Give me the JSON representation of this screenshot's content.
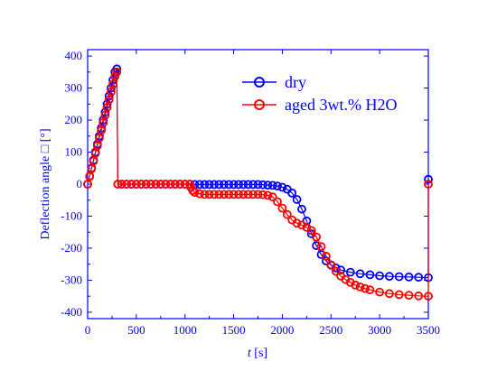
{
  "chart_data": {
    "type": "scatter",
    "xlabel_italic": "t",
    "xlabel_unit": " [s]",
    "ylabel": "Deflection angle □ [°]",
    "xlim": [
      0,
      3500
    ],
    "ylim": [
      -420,
      420
    ],
    "x_ticks": [
      0,
      500,
      1000,
      1500,
      2000,
      2500,
      3000,
      3500
    ],
    "y_ticks": [
      -400,
      -300,
      -200,
      -100,
      0,
      100,
      200,
      300,
      400
    ],
    "grid": false,
    "legend_position": "top-right",
    "axis_color": "#0000ff",
    "series": [
      {
        "name": "dry",
        "color": "#0000ff",
        "points": [
          [
            0,
            0
          ],
          [
            20,
            25
          ],
          [
            40,
            50
          ],
          [
            60,
            75
          ],
          [
            80,
            100
          ],
          [
            100,
            125
          ],
          [
            120,
            150
          ],
          [
            140,
            175
          ],
          [
            160,
            200
          ],
          [
            180,
            225
          ],
          [
            200,
            250
          ],
          [
            220,
            275
          ],
          [
            240,
            300
          ],
          [
            260,
            325
          ],
          [
            280,
            350
          ],
          [
            300,
            360
          ],
          [
            310,
            0
          ],
          [
            350,
            0
          ],
          [
            400,
            0
          ],
          [
            450,
            0
          ],
          [
            500,
            0
          ],
          [
            550,
            0
          ],
          [
            600,
            0
          ],
          [
            650,
            0
          ],
          [
            700,
            0
          ],
          [
            750,
            0
          ],
          [
            800,
            0
          ],
          [
            850,
            0
          ],
          [
            900,
            0
          ],
          [
            950,
            0
          ],
          [
            1000,
            0
          ],
          [
            1050,
            0
          ],
          [
            1100,
            -1
          ],
          [
            1150,
            -1
          ],
          [
            1200,
            -1
          ],
          [
            1250,
            -1
          ],
          [
            1300,
            -1
          ],
          [
            1350,
            -1
          ],
          [
            1400,
            -1
          ],
          [
            1450,
            -1
          ],
          [
            1500,
            -1
          ],
          [
            1550,
            -1
          ],
          [
            1600,
            -1
          ],
          [
            1650,
            -1
          ],
          [
            1700,
            -1
          ],
          [
            1750,
            -1
          ],
          [
            1800,
            -2
          ],
          [
            1850,
            -3
          ],
          [
            1900,
            -4
          ],
          [
            1950,
            -6
          ],
          [
            2000,
            -10
          ],
          [
            2050,
            -16
          ],
          [
            2100,
            -28
          ],
          [
            2150,
            -48
          ],
          [
            2200,
            -78
          ],
          [
            2250,
            -115
          ],
          [
            2300,
            -155
          ],
          [
            2350,
            -192
          ],
          [
            2400,
            -220
          ],
          [
            2450,
            -240
          ],
          [
            2500,
            -253
          ],
          [
            2550,
            -262
          ],
          [
            2600,
            -268
          ],
          [
            2700,
            -275
          ],
          [
            2800,
            -280
          ],
          [
            2900,
            -283
          ],
          [
            3000,
            -286
          ],
          [
            3100,
            -288
          ],
          [
            3200,
            -289
          ],
          [
            3300,
            -290
          ],
          [
            3400,
            -291
          ],
          [
            3500,
            -292
          ],
          [
            3500,
            15
          ]
        ]
      },
      {
        "name": "aged 3wt.% H2O",
        "color": "#ff0000",
        "points": [
          [
            0,
            0
          ],
          [
            20,
            24
          ],
          [
            40,
            48
          ],
          [
            60,
            72
          ],
          [
            80,
            96
          ],
          [
            100,
            120
          ],
          [
            120,
            144
          ],
          [
            140,
            168
          ],
          [
            160,
            192
          ],
          [
            180,
            216
          ],
          [
            200,
            240
          ],
          [
            220,
            264
          ],
          [
            240,
            288
          ],
          [
            260,
            312
          ],
          [
            280,
            336
          ],
          [
            300,
            350
          ],
          [
            310,
            0
          ],
          [
            350,
            0
          ],
          [
            400,
            0
          ],
          [
            450,
            0
          ],
          [
            500,
            0
          ],
          [
            550,
            0
          ],
          [
            600,
            0
          ],
          [
            650,
            0
          ],
          [
            700,
            0
          ],
          [
            750,
            0
          ],
          [
            800,
            0
          ],
          [
            850,
            0
          ],
          [
            900,
            0
          ],
          [
            950,
            0
          ],
          [
            1000,
            0
          ],
          [
            1050,
            0
          ],
          [
            1060,
            -10
          ],
          [
            1080,
            -20
          ],
          [
            1100,
            -26
          ],
          [
            1150,
            -30
          ],
          [
            1200,
            -32
          ],
          [
            1250,
            -32
          ],
          [
            1300,
            -32
          ],
          [
            1350,
            -32
          ],
          [
            1400,
            -32
          ],
          [
            1450,
            -32
          ],
          [
            1500,
            -32
          ],
          [
            1550,
            -32
          ],
          [
            1600,
            -32
          ],
          [
            1650,
            -32
          ],
          [
            1700,
            -32
          ],
          [
            1750,
            -32
          ],
          [
            1800,
            -33
          ],
          [
            1850,
            -35
          ],
          [
            1900,
            -40
          ],
          [
            1950,
            -55
          ],
          [
            2000,
            -75
          ],
          [
            2050,
            -95
          ],
          [
            2100,
            -112
          ],
          [
            2150,
            -122
          ],
          [
            2200,
            -128
          ],
          [
            2250,
            -135
          ],
          [
            2300,
            -145
          ],
          [
            2350,
            -165
          ],
          [
            2400,
            -195
          ],
          [
            2450,
            -225
          ],
          [
            2500,
            -252
          ],
          [
            2550,
            -272
          ],
          [
            2600,
            -287
          ],
          [
            2650,
            -298
          ],
          [
            2700,
            -307
          ],
          [
            2750,
            -315
          ],
          [
            2800,
            -321
          ],
          [
            2850,
            -326
          ],
          [
            2900,
            -330
          ],
          [
            3000,
            -337
          ],
          [
            3100,
            -342
          ],
          [
            3200,
            -345
          ],
          [
            3300,
            -347
          ],
          [
            3400,
            -349
          ],
          [
            3500,
            -350
          ],
          [
            3500,
            0
          ]
        ]
      }
    ]
  }
}
